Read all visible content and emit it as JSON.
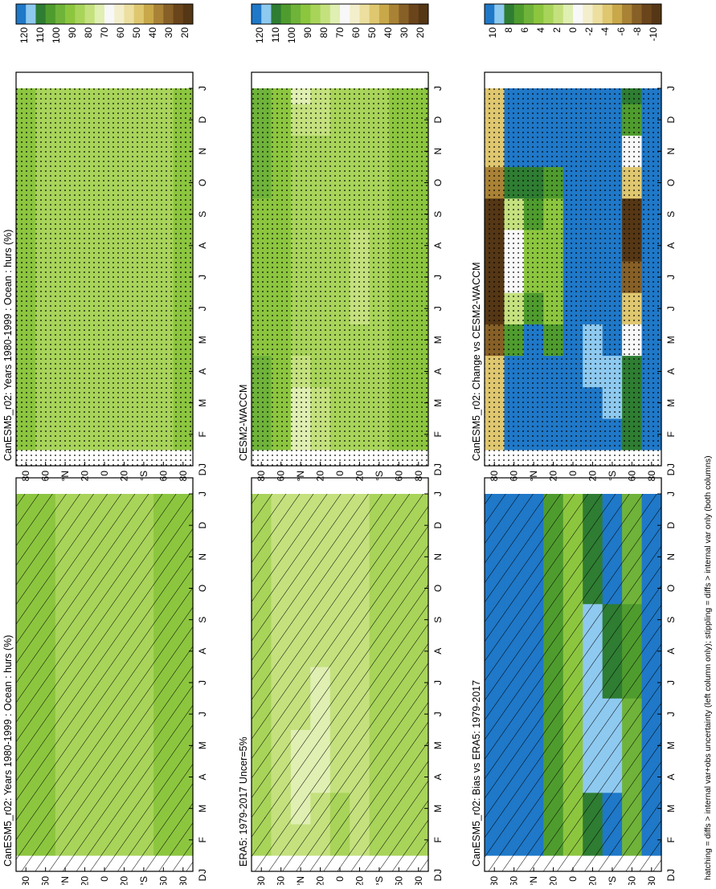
{
  "footnote": "hatching = diffs > internal var+obs uncertainty (left column only); stippling = diffs > internal var only (both columns)",
  "palettes": {
    "abs": [
      "#1f78c8",
      "#8ec9ef",
      "#2e7d32",
      "#4f9c2e",
      "#6fb33a",
      "#8cc63f",
      "#a8d45a",
      "#c4e17e",
      "#e0efb2",
      "#f8f8f8",
      "#f3efcc",
      "#ecdf9f",
      "#dfc770",
      "#c9a84a",
      "#a98236",
      "#876027",
      "#6a451b",
      "#553715"
    ],
    "diff": [
      "#1f78c8",
      "#8ec9ef",
      "#2e7d32",
      "#4f9c2e",
      "#6fb33a",
      "#8cc63f",
      "#a8d45a",
      "#c4e17e",
      "#e0efb2",
      "#f8f8f8",
      "#f3efcc",
      "#ecdf9f",
      "#dfc770",
      "#c9a84a",
      "#a98236",
      "#876027",
      "#6a451b",
      "#553715"
    ]
  },
  "chart_data": [
    {
      "type": "heatmap",
      "title": "CanESM5_r02: Years 1980-1999 : Ocean : hurs (%)",
      "months": [
        "J",
        "F",
        "M",
        "A",
        "M",
        "J",
        "J",
        "A",
        "S",
        "O",
        "N",
        "D",
        "J"
      ],
      "lat_ticks": [
        "80",
        "60",
        "°N",
        "20",
        "0",
        "20",
        "°S",
        "60",
        "80"
      ],
      "month_axis_label": "D",
      "colorbar_labels": [
        "120",
        "110",
        "100",
        "90",
        "80",
        "70",
        "60",
        "50",
        "40",
        "30",
        "20"
      ],
      "lat_rows": [
        80,
        60,
        40,
        20,
        0,
        -20,
        -40,
        -60,
        -80
      ],
      "values": [
        [
          90,
          90,
          90,
          90,
          90,
          90,
          90,
          90,
          90,
          90,
          90,
          90
        ],
        [
          88,
          88,
          88,
          88,
          88,
          88,
          88,
          88,
          88,
          88,
          88,
          88
        ],
        [
          86,
          86,
          86,
          86,
          86,
          86,
          86,
          86,
          86,
          86,
          86,
          86
        ],
        [
          84,
          84,
          84,
          84,
          84,
          84,
          84,
          84,
          84,
          84,
          84,
          84
        ],
        [
          86,
          86,
          86,
          86,
          86,
          86,
          86,
          86,
          86,
          86,
          86,
          86
        ],
        [
          84,
          84,
          84,
          84,
          84,
          84,
          84,
          84,
          84,
          84,
          84,
          84
        ],
        [
          86,
          86,
          86,
          86,
          86,
          86,
          86,
          86,
          86,
          86,
          86,
          86
        ],
        [
          88,
          88,
          88,
          88,
          88,
          88,
          88,
          88,
          88,
          88,
          88,
          88
        ],
        [
          90,
          90,
          90,
          90,
          90,
          90,
          90,
          90,
          90,
          90,
          90,
          90
        ]
      ],
      "hatch": "lines"
    },
    {
      "type": "heatmap",
      "title": "CanESM5_r02: Years 1980-1999 : Ocean : hurs (%)",
      "months": [
        "J",
        "F",
        "M",
        "A",
        "M",
        "J",
        "J",
        "A",
        "S",
        "O",
        "N",
        "D",
        "J"
      ],
      "lat_ticks": [
        "80",
        "60",
        "°N",
        "20",
        "0",
        "20",
        "°S",
        "60",
        "80"
      ],
      "month_axis_label": "D",
      "colorbar_labels": [
        "120",
        "110",
        "100",
        "90",
        "80",
        "70",
        "60",
        "50",
        "40",
        "30",
        "20"
      ],
      "lat_rows": [
        80,
        60,
        40,
        20,
        0,
        -20,
        -40,
        -60,
        -80
      ],
      "values": [
        [
          88,
          88,
          88,
          88,
          88,
          88,
          88,
          88,
          88,
          88,
          88,
          88
        ],
        [
          87,
          87,
          87,
          87,
          87,
          87,
          87,
          87,
          87,
          87,
          87,
          87
        ],
        [
          86,
          86,
          86,
          86,
          86,
          86,
          86,
          86,
          86,
          86,
          86,
          86
        ],
        [
          84,
          84,
          84,
          84,
          84,
          84,
          84,
          84,
          84,
          84,
          84,
          84
        ],
        [
          85,
          85,
          85,
          85,
          85,
          85,
          85,
          85,
          85,
          85,
          85,
          85
        ],
        [
          84,
          84,
          84,
          84,
          84,
          84,
          84,
          84,
          84,
          84,
          84,
          84
        ],
        [
          85,
          85,
          85,
          85,
          85,
          85,
          85,
          85,
          85,
          85,
          85,
          85
        ],
        [
          87,
          87,
          87,
          87,
          87,
          87,
          87,
          87,
          87,
          87,
          87,
          87
        ],
        [
          88,
          88,
          88,
          88,
          88,
          88,
          88,
          88,
          88,
          88,
          88,
          88
        ]
      ],
      "hatch": "dots"
    },
    {
      "type": "heatmap",
      "title": "ERA5: 1979-2017 Uncer=5%",
      "months": [
        "J",
        "F",
        "M",
        "A",
        "M",
        "J",
        "J",
        "A",
        "S",
        "O",
        "N",
        "D",
        "J"
      ],
      "lat_ticks": [
        "80",
        "60",
        "°N",
        "20",
        "0",
        "20",
        "°S",
        "60",
        "80"
      ],
      "month_axis_label": "D",
      "colorbar_labels": [
        "120",
        "110",
        "100",
        "90",
        "80",
        "70",
        "60",
        "50",
        "40",
        "30",
        "20"
      ],
      "lat_rows": [
        80,
        60,
        40,
        20,
        0,
        -20,
        -40,
        -60,
        -80
      ],
      "values": [
        [
          82,
          82,
          82,
          82,
          82,
          82,
          82,
          82,
          82,
          82,
          82,
          82
        ],
        [
          80,
          80,
          80,
          80,
          80,
          80,
          80,
          80,
          80,
          80,
          80,
          80
        ],
        [
          76,
          74,
          72,
          73,
          76,
          78,
          80,
          80,
          80,
          80,
          80,
          80
        ],
        [
          78,
          76,
          74,
          72,
          73,
          74,
          76,
          78,
          80,
          80,
          80,
          80
        ],
        [
          82,
          82,
          80,
          80,
          80,
          80,
          80,
          80,
          80,
          80,
          80,
          80
        ],
        [
          80,
          80,
          80,
          80,
          80,
          80,
          80,
          80,
          80,
          80,
          80,
          80
        ],
        [
          82,
          82,
          82,
          82,
          82,
          82,
          82,
          82,
          82,
          82,
          82,
          82
        ],
        [
          84,
          84,
          84,
          84,
          84,
          84,
          84,
          84,
          84,
          84,
          84,
          84
        ],
        [
          82,
          82,
          82,
          82,
          82,
          82,
          82,
          82,
          82,
          82,
          82,
          82
        ]
      ],
      "hatch": "lines"
    },
    {
      "type": "heatmap",
      "title": "CESM2-WACCM",
      "months": [
        "J",
        "F",
        "M",
        "A",
        "M",
        "J",
        "J",
        "A",
        "S",
        "O",
        "N",
        "D",
        "J"
      ],
      "lat_ticks": [
        "80",
        "60",
        "°N",
        "20",
        "0",
        "20",
        "°S",
        "60",
        "80"
      ],
      "month_axis_label": "D",
      "colorbar_labels": [
        "120",
        "110",
        "100",
        "90",
        "80",
        "70",
        "60",
        "50",
        "40",
        "30",
        "20"
      ],
      "lat_rows": [
        80,
        60,
        40,
        20,
        0,
        -20,
        -40,
        -60,
        -80
      ],
      "values": [
        [
          96,
          96,
          94,
          92,
          92,
          92,
          92,
          92,
          94,
          96,
          96,
          96
        ],
        [
          92,
          92,
          90,
          90,
          90,
          90,
          90,
          90,
          90,
          92,
          92,
          92
        ],
        [
          74,
          74,
          80,
          84,
          86,
          86,
          86,
          86,
          84,
          82,
          76,
          74
        ],
        [
          80,
          80,
          82,
          84,
          84,
          84,
          84,
          84,
          84,
          82,
          80,
          80
        ],
        [
          84,
          84,
          84,
          84,
          84,
          84,
          84,
          84,
          84,
          84,
          84,
          84
        ],
        [
          82,
          82,
          82,
          82,
          80,
          78,
          80,
          82,
          82,
          82,
          82,
          82
        ],
        [
          84,
          84,
          84,
          84,
          84,
          84,
          84,
          84,
          84,
          84,
          84,
          84
        ],
        [
          88,
          88,
          88,
          88,
          88,
          88,
          88,
          92,
          92,
          90,
          88,
          88
        ],
        [
          90,
          90,
          90,
          90,
          90,
          90,
          90,
          90,
          90,
          90,
          90,
          90
        ]
      ],
      "hatch": "dots"
    },
    {
      "type": "heatmap",
      "title": "CanESM5_r02: Bias vs ERA5: 1979-2017",
      "months": [
        "J",
        "F",
        "M",
        "A",
        "M",
        "J",
        "J",
        "A",
        "S",
        "O",
        "N",
        "D",
        "J"
      ],
      "lat_ticks": [
        "80",
        "60",
        "°N",
        "20",
        "0",
        "20",
        "°S",
        "60",
        "80"
      ],
      "month_axis_label": "D",
      "colorbar_labels": [
        "10",
        "8",
        "6",
        "4",
        "2",
        "0",
        "-2",
        "-4",
        "-6",
        "-8",
        "-10"
      ],
      "lat_rows": [
        80,
        60,
        40,
        20,
        0,
        -20,
        -40,
        -60,
        -80
      ],
      "values": [
        [
          10,
          10,
          10,
          10,
          10,
          10,
          10,
          10,
          10,
          10,
          10,
          10
        ],
        [
          10,
          10,
          10,
          10,
          10,
          10,
          10,
          10,
          10,
          10,
          10,
          10
        ],
        [
          10,
          10,
          10,
          10,
          10,
          10,
          10,
          10,
          10,
          10,
          10,
          10
        ],
        [
          6,
          6,
          6,
          6,
          6,
          6,
          6,
          6,
          6,
          6,
          6,
          6
        ],
        [
          4,
          4,
          4,
          4,
          4,
          4,
          4,
          4,
          4,
          4,
          4,
          4
        ],
        [
          8,
          8,
          9,
          9,
          9,
          9,
          9,
          9,
          8,
          8,
          8,
          8
        ],
        [
          10,
          10,
          9,
          9,
          9,
          8,
          8,
          8,
          10,
          10,
          10,
          10
        ],
        [
          5,
          5,
          5,
          5,
          5,
          6,
          6,
          6,
          5,
          5,
          5,
          5
        ],
        [
          10,
          10,
          10,
          10,
          10,
          10,
          10,
          10,
          10,
          10,
          10,
          10
        ]
      ],
      "hatch": "lines"
    },
    {
      "type": "heatmap",
      "title": "CanESM5_r02: Change vs CESM2-WACCM",
      "months": [
        "J",
        "F",
        "M",
        "A",
        "M",
        "J",
        "J",
        "A",
        "S",
        "O",
        "N",
        "D",
        "J"
      ],
      "lat_ticks": [
        "80",
        "60",
        "°N",
        "20",
        "0",
        "20",
        "°S",
        "60",
        "80"
      ],
      "month_axis_label": "D",
      "colorbar_labels": [
        "10",
        "8",
        "6",
        "4",
        "2",
        "0",
        "-2",
        "-4",
        "-6",
        "-8",
        "-10"
      ],
      "lat_rows": [
        80,
        60,
        40,
        20,
        0,
        -20,
        -40,
        -60,
        -80
      ],
      "values": [
        [
          -4,
          -4,
          -4,
          -8,
          -10,
          -10,
          -10,
          -10,
          -6,
          -4,
          -4,
          -4
        ],
        [
          10,
          10,
          10,
          6,
          2,
          0,
          0,
          2,
          8,
          10,
          10,
          10
        ],
        [
          10,
          10,
          10,
          10,
          6,
          4,
          4,
          6,
          8,
          10,
          10,
          10
        ],
        [
          10,
          10,
          10,
          6,
          4,
          4,
          4,
          4,
          6,
          10,
          10,
          10
        ],
        [
          10,
          10,
          10,
          10,
          10,
          10,
          10,
          10,
          10,
          10,
          10,
          10
        ],
        [
          10,
          10,
          9,
          9,
          10,
          10,
          10,
          10,
          10,
          10,
          10,
          10
        ],
        [
          10,
          9,
          9,
          10,
          10,
          10,
          10,
          10,
          10,
          10,
          10,
          10
        ],
        [
          8,
          8,
          8,
          0,
          -4,
          -8,
          -10,
          -10,
          -4,
          0,
          6,
          8
        ],
        [
          10,
          10,
          10,
          10,
          10,
          10,
          10,
          10,
          10,
          10,
          10,
          10
        ]
      ],
      "hatch": "dots"
    }
  ]
}
